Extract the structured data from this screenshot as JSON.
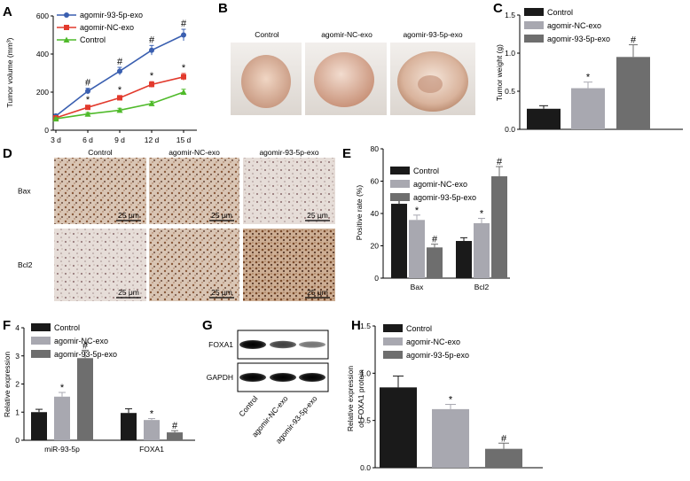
{
  "panels": {
    "A": {
      "letter": "A",
      "chart_data": {
        "type": "line",
        "x": [
          "3 d",
          "6 d",
          "9 d",
          "12 d",
          "15 d"
        ],
        "ylabel": "Tumor volume (mm³)",
        "ylim": [
          0,
          600
        ],
        "yticks": [
          "0",
          "200",
          "400",
          "600"
        ],
        "series": [
          {
            "name": "agomir-93-5p-exo",
            "color": "#3a5fb0",
            "marker": "circle",
            "values": [
              75,
              205,
              310,
              420,
              500
            ],
            "errors": [
              8,
              15,
              20,
              25,
              30
            ],
            "annotations": [
              "",
              "#",
              "#",
              "#",
              "#"
            ]
          },
          {
            "name": "agomir-NC-exo",
            "color": "#e23a2d",
            "marker": "square",
            "values": [
              65,
              120,
              170,
              240,
              280
            ],
            "errors": [
              6,
              10,
              12,
              15,
              18
            ],
            "annotations": [
              "",
              "*",
              "*",
              "*",
              "*"
            ]
          },
          {
            "name": "Control",
            "color": "#4fba2a",
            "marker": "triangle",
            "values": [
              60,
              85,
              105,
              140,
              200
            ],
            "errors": [
              5,
              8,
              10,
              12,
              15
            ],
            "annotations": [
              "",
              "",
              "",
              "",
              ""
            ]
          }
        ]
      }
    },
    "B": {
      "letter": "B",
      "labels": [
        "Control",
        "agomir-NC-exo",
        "agomir-93-5p-exo"
      ]
    },
    "C": {
      "letter": "C",
      "chart_data": {
        "type": "bar",
        "categories": [
          "Control",
          "agomir-NC-exo",
          "agomir-93-5p-exo"
        ],
        "ylabel": "Tumor weight (g)",
        "ylim": [
          0,
          1.5
        ],
        "yticks": [
          "0.0",
          "0.5",
          "1.0",
          "1.5"
        ],
        "values": [
          0.27,
          0.54,
          0.95
        ],
        "errors": [
          0.04,
          0.08,
          0.16
        ],
        "annotations": [
          "",
          "*",
          "#"
        ],
        "colors": [
          "#1a1a1a",
          "#a8a8b0",
          "#6e6e6e"
        ]
      }
    },
    "D": {
      "letter": "D",
      "columns": [
        "Control",
        "agomir-NC-exo",
        "agomir-93-5p-exo"
      ],
      "rows": [
        "Bax",
        "Bcl2"
      ],
      "scale_label": "25 μm"
    },
    "E": {
      "letter": "E",
      "chart_data": {
        "type": "bar",
        "categories": [
          "Bax",
          "Bcl2"
        ],
        "ylabel": "Positive rate (%)",
        "ylim": [
          0,
          80
        ],
        "yticks": [
          "0",
          "20",
          "40",
          "60",
          "80"
        ],
        "series": [
          {
            "name": "Control",
            "color": "#1a1a1a",
            "values": [
              46,
              23
            ],
            "errors": [
              5,
              2
            ],
            "annotations": [
              "",
              ""
            ]
          },
          {
            "name": "agomir-NC-exo",
            "color": "#a8a8b0",
            "values": [
              36,
              34
            ],
            "errors": [
              3,
              3
            ],
            "annotations": [
              "*",
              "*"
            ]
          },
          {
            "name": "agomir-93-5p-exo",
            "color": "#6e6e6e",
            "values": [
              19,
              63
            ],
            "errors": [
              2,
              6
            ],
            "annotations": [
              "#",
              "#"
            ]
          }
        ]
      }
    },
    "F": {
      "letter": "F",
      "chart_data": {
        "type": "bar",
        "categories": [
          "miR-93-5p",
          "FOXA1"
        ],
        "ylabel": "Relative expression",
        "ylim": [
          0,
          4
        ],
        "yticks": [
          "0",
          "1",
          "2",
          "3",
          "4"
        ],
        "series": [
          {
            "name": "Control",
            "color": "#1a1a1a",
            "values": [
              1.0,
              0.97
            ],
            "errors": [
              0.1,
              0.15
            ],
            "annotations": [
              "",
              ""
            ]
          },
          {
            "name": "agomir-NC-exo",
            "color": "#a8a8b0",
            "values": [
              1.55,
              0.72
            ],
            "errors": [
              0.15,
              0.05
            ],
            "annotations": [
              "*",
              "*"
            ]
          },
          {
            "name": "agomir-93-5p-exo",
            "color": "#6e6e6e",
            "values": [
              2.92,
              0.28
            ],
            "errors": [
              0.28,
              0.06
            ],
            "annotations": [
              "#",
              "#"
            ]
          }
        ]
      }
    },
    "G": {
      "letter": "G",
      "bands": [
        "FOXA1",
        "GAPDH"
      ],
      "lanes": [
        "Control",
        "agomir-NC-exo",
        "agomir-93-5p-exo"
      ],
      "foxa1_intensity": [
        1.0,
        0.62,
        0.3
      ]
    },
    "H": {
      "letter": "H",
      "chart_data": {
        "type": "bar",
        "categories": [
          "Control",
          "agomir-NC-exo",
          "agomir-93-5p-exo"
        ],
        "ylabel": "Relative expression of FOXA1 protein",
        "ylabel_lines": [
          "Relative expression",
          "of FOXA1 protein"
        ],
        "ylim": [
          0,
          1.5
        ],
        "yticks": [
          "0.0",
          "0.5",
          "1.0",
          "1.5"
        ],
        "values": [
          0.85,
          0.62,
          0.2
        ],
        "errors": [
          0.12,
          0.05,
          0.06
        ],
        "annotations": [
          "",
          "*",
          "#"
        ],
        "colors": [
          "#1a1a1a",
          "#a8a8b0",
          "#6e6e6e"
        ]
      }
    }
  }
}
